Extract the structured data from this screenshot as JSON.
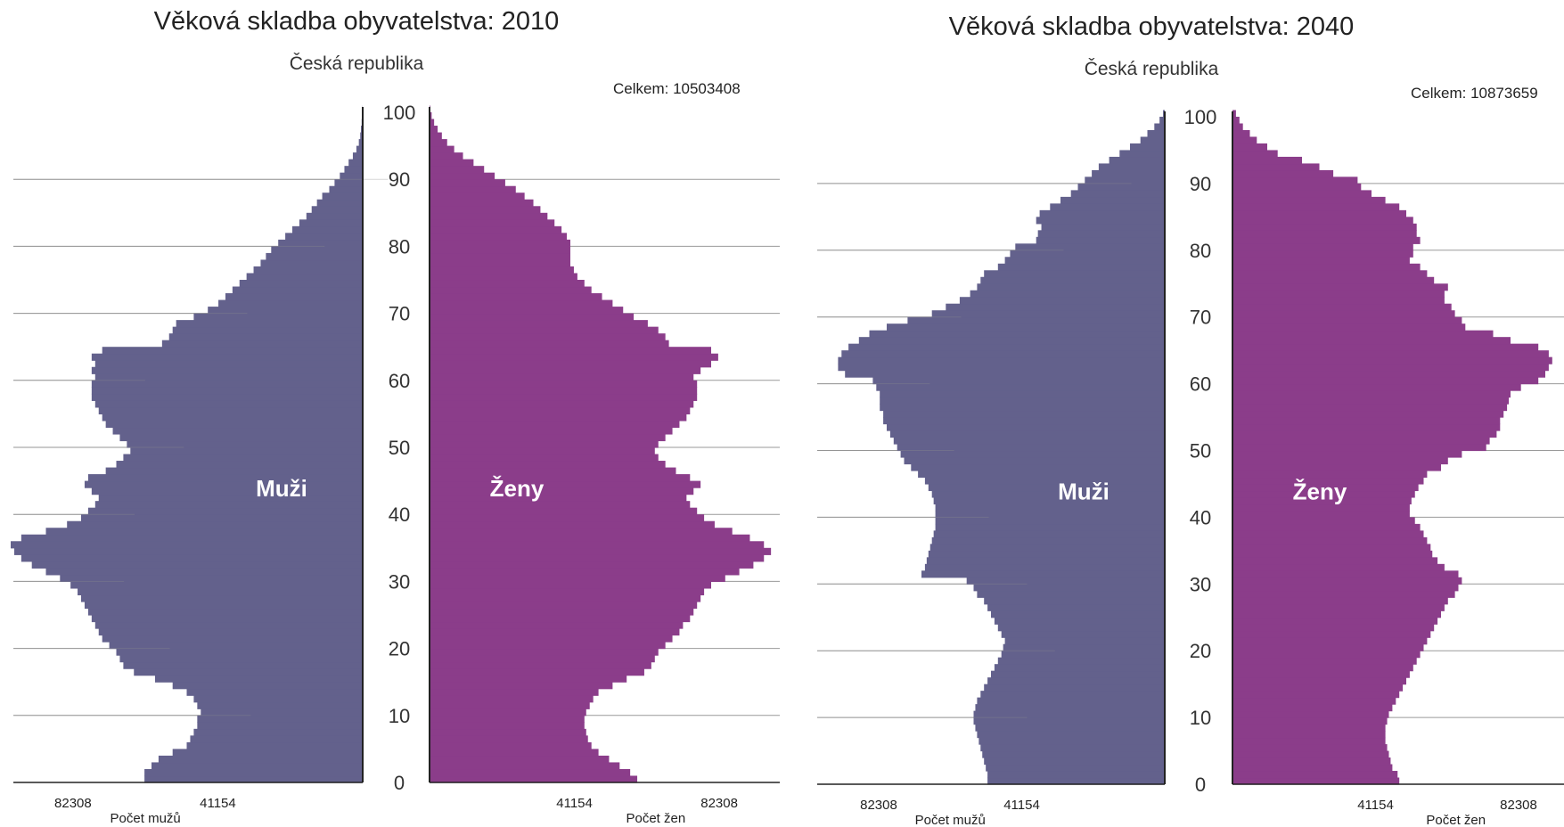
{
  "chart_data": [
    {
      "type": "bar",
      "subtype": "population-pyramid",
      "title": "Věková skladba obyvatelstva: 2010",
      "subtitle": "Česká republika",
      "total_label": "Celkem: 10503408",
      "ylim": [
        0,
        100
      ],
      "yticks": [
        0,
        10,
        20,
        30,
        40,
        50,
        60,
        70,
        80,
        90,
        100
      ],
      "xticks": [
        82308,
        41154
      ],
      "xlabel_left": "Počet mužů",
      "xlabel_right": "Počet žen",
      "grid": true,
      "ages": [
        0,
        1,
        2,
        3,
        4,
        5,
        6,
        7,
        8,
        9,
        10,
        11,
        12,
        13,
        14,
        15,
        16,
        17,
        18,
        19,
        20,
        21,
        22,
        23,
        24,
        25,
        26,
        27,
        28,
        29,
        30,
        31,
        32,
        33,
        34,
        35,
        36,
        37,
        38,
        39,
        40,
        41,
        42,
        43,
        44,
        45,
        46,
        47,
        48,
        49,
        50,
        51,
        52,
        53,
        54,
        55,
        56,
        57,
        58,
        59,
        60,
        61,
        62,
        63,
        64,
        65,
        66,
        67,
        68,
        69,
        70,
        71,
        72,
        73,
        74,
        75,
        76,
        77,
        78,
        79,
        80,
        81,
        82,
        83,
        84,
        85,
        86,
        87,
        88,
        89,
        90,
        91,
        92,
        93,
        94,
        95,
        96,
        97,
        98,
        99,
        100
      ],
      "series": [
        {
          "name": "Muži",
          "color": "#63618c",
          "values": [
            62000,
            62000,
            60000,
            58000,
            54000,
            50000,
            49000,
            48000,
            47000,
            47000,
            46000,
            47000,
            48000,
            50000,
            54000,
            59000,
            65000,
            68000,
            69000,
            70000,
            72000,
            74000,
            75000,
            76000,
            77000,
            78000,
            79000,
            80000,
            81000,
            83000,
            86000,
            90000,
            94000,
            97000,
            99000,
            100000,
            97000,
            90000,
            84000,
            80000,
            78000,
            76000,
            75000,
            77000,
            79000,
            78000,
            73000,
            70000,
            68000,
            66000,
            67000,
            69000,
            71000,
            73000,
            74000,
            75000,
            76000,
            77000,
            77000,
            77000,
            76000,
            77000,
            76000,
            77000,
            74000,
            57000,
            55000,
            54000,
            53000,
            48000,
            44000,
            41000,
            39000,
            37000,
            35000,
            33000,
            31000,
            29000,
            27500,
            26000,
            24000,
            22000,
            20000,
            18000,
            16000,
            14500,
            13000,
            11500,
            9500,
            8000,
            6500,
            5200,
            4000,
            2800,
            1800,
            1100,
            700,
            500,
            300,
            150,
            50
          ]
        },
        {
          "name": "Ženy",
          "color": "#8b3d8a",
          "values": [
            59000,
            57000,
            54000,
            51000,
            48000,
            46000,
            45000,
            44500,
            44000,
            44000,
            44500,
            45500,
            46500,
            48000,
            52000,
            56000,
            61000,
            63000,
            64000,
            65000,
            67000,
            69000,
            71000,
            72000,
            74000,
            75000,
            76000,
            77000,
            78000,
            80000,
            84000,
            88000,
            92000,
            95000,
            97000,
            95000,
            91000,
            86000,
            81000,
            78000,
            76000,
            74000,
            73000,
            75000,
            77000,
            74000,
            70000,
            67000,
            65000,
            64000,
            65000,
            67000,
            69000,
            71000,
            73000,
            74000,
            75000,
            76000,
            76000,
            76000,
            75000,
            77000,
            80000,
            82000,
            80000,
            68000,
            67000,
            65000,
            62000,
            58000,
            55000,
            52000,
            49000,
            46000,
            44000,
            42000,
            41000,
            40000,
            40000,
            40000,
            40000,
            39000,
            37500,
            35500,
            33500,
            31500,
            29500,
            27000,
            24500,
            21500,
            18500,
            15500,
            12500,
            9500,
            7000,
            5000,
            3500,
            2300,
            1300,
            600,
            200
          ]
        }
      ],
      "center_labels": [
        "Muži",
        "Ženy"
      ]
    },
    {
      "type": "bar",
      "subtype": "population-pyramid",
      "title": "Věková skladba obyvatelstva: 2040",
      "subtitle": "Česká republika",
      "total_label": "Celkem: 10873659",
      "ylim": [
        0,
        100
      ],
      "yticks": [
        0,
        10,
        20,
        30,
        40,
        50,
        60,
        70,
        80,
        90,
        100
      ],
      "xticks": [
        82308,
        41154
      ],
      "xlabel_left": "Počet mužů",
      "xlabel_right": "Počet žen",
      "grid": true,
      "ages": [
        0,
        1,
        2,
        3,
        4,
        5,
        6,
        7,
        8,
        9,
        10,
        11,
        12,
        13,
        14,
        15,
        16,
        17,
        18,
        19,
        20,
        21,
        22,
        23,
        24,
        25,
        26,
        27,
        28,
        29,
        30,
        31,
        32,
        33,
        34,
        35,
        36,
        37,
        38,
        39,
        40,
        41,
        42,
        43,
        44,
        45,
        46,
        47,
        48,
        49,
        50,
        51,
        52,
        53,
        54,
        55,
        56,
        57,
        58,
        59,
        60,
        61,
        62,
        63,
        64,
        65,
        66,
        67,
        68,
        69,
        70,
        71,
        72,
        73,
        74,
        75,
        76,
        77,
        78,
        79,
        80,
        81,
        82,
        83,
        84,
        85,
        86,
        87,
        88,
        89,
        90,
        91,
        92,
        93,
        94,
        95,
        96,
        97,
        98,
        99,
        100
      ],
      "series": [
        {
          "name": "Muži",
          "color": "#63618c",
          "values": [
            51000,
            51000,
            51500,
            52000,
            52500,
            53000,
            53500,
            54000,
            54500,
            55000,
            55000,
            54500,
            54000,
            53000,
            52000,
            51000,
            50000,
            49000,
            48000,
            47000,
            46500,
            46000,
            47000,
            48000,
            49000,
            50000,
            51000,
            52000,
            54000,
            55000,
            57000,
            70000,
            69000,
            68500,
            68000,
            67500,
            67000,
            66500,
            66000,
            66000,
            66000,
            66000,
            66500,
            67000,
            68000,
            69000,
            71000,
            73000,
            75000,
            76000,
            77000,
            78000,
            79000,
            80000,
            81000,
            81000,
            82000,
            82000,
            82000,
            83000,
            84000,
            92000,
            94000,
            94000,
            93000,
            91000,
            88000,
            85000,
            80000,
            74000,
            67000,
            63000,
            59000,
            56000,
            54000,
            53000,
            52000,
            48000,
            46000,
            44500,
            43000,
            37000,
            36500,
            35500,
            37000,
            36000,
            33000,
            30000,
            27000,
            25000,
            23000,
            21000,
            19000,
            16000,
            13000,
            10000,
            7000,
            5000,
            3000,
            1500,
            500
          ]
        },
        {
          "name": "Ženy",
          "color": "#8b3d8a",
          "values": [
            48000,
            47500,
            46000,
            45500,
            45000,
            44500,
            44000,
            44000,
            44000,
            44500,
            45000,
            46000,
            47000,
            48000,
            49000,
            50000,
            51000,
            52000,
            53000,
            54000,
            55000,
            56000,
            57000,
            58000,
            59000,
            60000,
            61000,
            62000,
            64000,
            65000,
            66000,
            65000,
            61000,
            59000,
            57500,
            57000,
            56000,
            55000,
            54000,
            52500,
            51000,
            51000,
            51500,
            52500,
            53500,
            55000,
            56000,
            60000,
            62000,
            66000,
            73000,
            74000,
            76000,
            77000,
            77000,
            78000,
            79000,
            79500,
            80000,
            83000,
            88000,
            90000,
            91000,
            92000,
            91000,
            88000,
            80000,
            75000,
            67000,
            66000,
            64000,
            63000,
            61000,
            61000,
            62000,
            58000,
            56000,
            54000,
            51000,
            52000,
            52000,
            54000,
            53000,
            53000,
            52000,
            50000,
            48000,
            44000,
            40000,
            37000,
            36000,
            29000,
            25000,
            20000,
            13000,
            10000,
            7000,
            5000,
            3000,
            2000,
            1000
          ]
        }
      ],
      "center_labels": [
        "Muži",
        "Ženy"
      ]
    }
  ]
}
